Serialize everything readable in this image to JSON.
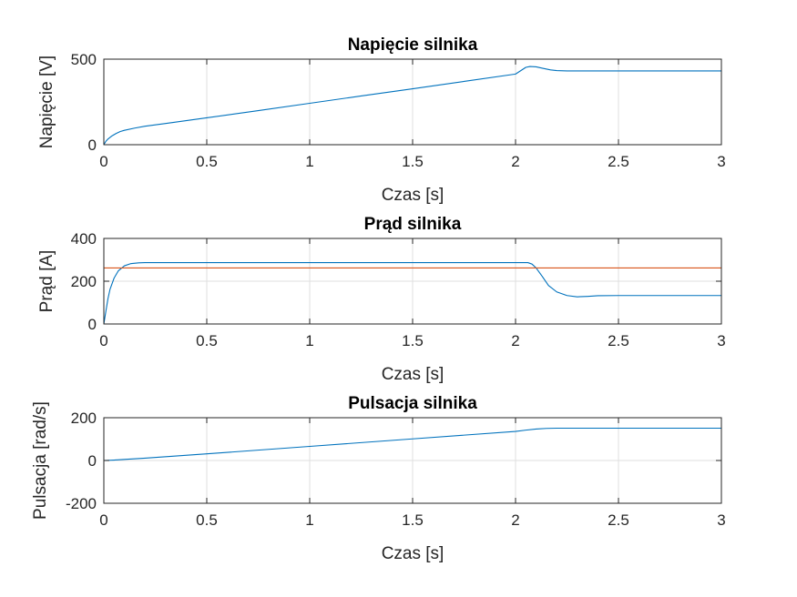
{
  "chart_data": [
    {
      "type": "line",
      "title": "Napięcie silnika",
      "xlabel": "Czas [s]",
      "ylabel": "Napięcie [V]",
      "xlim": [
        0,
        3
      ],
      "ylim": [
        0,
        500
      ],
      "xticks": [
        0,
        0.5,
        1,
        1.5,
        2,
        2.5,
        3
      ],
      "xtick_labels": [
        "0",
        "0.5",
        "1",
        "1.5",
        "2",
        "2.5",
        "3"
      ],
      "yticks": [
        0,
        500
      ],
      "ytick_labels": [
        "0",
        "500"
      ],
      "grid": true,
      "series": [
        {
          "color": "#0072BD",
          "x": [
            0,
            0.01,
            0.02,
            0.04,
            0.06,
            0.08,
            0.1,
            0.15,
            0.2,
            0.3,
            0.5,
            0.75,
            1.0,
            1.25,
            1.5,
            1.75,
            2.0,
            2.05,
            2.07,
            2.1,
            2.13,
            2.17,
            2.2,
            2.25,
            2.3,
            2.5,
            3.0
          ],
          "y": [
            0,
            20,
            33,
            52,
            66,
            77,
            84,
            97,
            108,
            124,
            157,
            199,
            242,
            285,
            327,
            370,
            413,
            452,
            457,
            455,
            447,
            437,
            433,
            431,
            431,
            431,
            431
          ]
        }
      ]
    },
    {
      "type": "line",
      "title": "Prąd silnika",
      "xlabel": "Czas [s]",
      "ylabel": "Prąd [A]",
      "xlim": [
        0,
        3
      ],
      "ylim": [
        0,
        400
      ],
      "xticks": [
        0,
        0.5,
        1,
        1.5,
        2,
        2.5,
        3
      ],
      "xtick_labels": [
        "0",
        "0.5",
        "1",
        "1.5",
        "2",
        "2.5",
        "3"
      ],
      "yticks": [
        0,
        200,
        400
      ],
      "ytick_labels": [
        "0",
        "200",
        "400"
      ],
      "grid": true,
      "series": [
        {
          "color": "#0072BD",
          "x": [
            0,
            0.01,
            0.02,
            0.03,
            0.05,
            0.07,
            0.1,
            0.13,
            0.17,
            0.2,
            0.3,
            1.0,
            2.0,
            2.06,
            2.08,
            2.1,
            2.13,
            2.16,
            2.2,
            2.25,
            2.3,
            2.35,
            2.4,
            2.5,
            3.0
          ],
          "y": [
            0,
            60,
            118,
            162,
            215,
            248,
            272,
            282,
            286,
            287,
            287,
            287,
            287,
            287,
            280,
            262,
            222,
            180,
            150,
            133,
            127,
            129,
            132,
            133,
            133
          ]
        },
        {
          "color": "#D95319",
          "x": [
            0,
            3
          ],
          "y": [
            262,
            262
          ]
        }
      ]
    },
    {
      "type": "line",
      "title": "Pulsacja silnika",
      "xlabel": "Czas [s]",
      "ylabel": "Pulsacja [rad/s]",
      "xlim": [
        0,
        3
      ],
      "ylim": [
        -200,
        200
      ],
      "xticks": [
        0,
        0.5,
        1,
        1.5,
        2,
        2.5,
        3
      ],
      "xtick_labels": [
        "0",
        "0.5",
        "1",
        "1.5",
        "2",
        "2.5",
        "3"
      ],
      "yticks": [
        -200,
        0,
        200
      ],
      "ytick_labels": [
        "-200",
        "0",
        "200"
      ],
      "grid": true,
      "series": [
        {
          "color": "#0072BD",
          "x": [
            0,
            0.05,
            0.1,
            0.2,
            0.5,
            1.0,
            1.5,
            2.0,
            2.05,
            2.1,
            2.15,
            2.2,
            2.3,
            2.5,
            3.0
          ],
          "y": [
            0,
            2,
            5,
            11,
            31,
            66,
            101,
            136,
            142,
            147,
            150,
            151,
            151,
            151,
            151
          ]
        }
      ]
    }
  ]
}
